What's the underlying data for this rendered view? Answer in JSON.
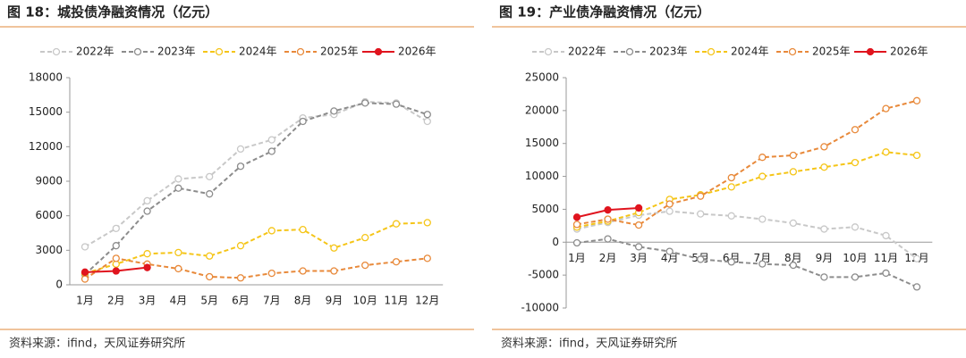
{
  "chart_data": [
    {
      "type": "line",
      "title": "图 18：城投债净融资情况（亿元）",
      "source": "资料来源：ifind，天风证券研究所",
      "categories": [
        "1月",
        "2月",
        "3月",
        "4月",
        "5月",
        "6月",
        "7月",
        "8月",
        "9月",
        "10月",
        "11月",
        "12月"
      ],
      "ylim": [
        0,
        18000
      ],
      "yticks": [
        0,
        3000,
        6000,
        9000,
        12000,
        15000,
        18000
      ],
      "series": [
        {
          "name": "2022年",
          "color": "#c8c8c8",
          "values": [
            3300,
            4900,
            7300,
            9200,
            9400,
            11800,
            12600,
            14500,
            14800,
            15900,
            15800,
            14200
          ]
        },
        {
          "name": "2023年",
          "color": "#8c8c8c",
          "values": [
            900,
            3400,
            6400,
            8400,
            7900,
            10300,
            11600,
            14200,
            15100,
            15800,
            15700,
            14800
          ]
        },
        {
          "name": "2024年",
          "color": "#f5c518",
          "values": [
            1000,
            1800,
            2700,
            2800,
            2500,
            3400,
            4700,
            4800,
            3200,
            4100,
            5300,
            5400
          ]
        },
        {
          "name": "2025年",
          "color": "#e8893a",
          "values": [
            500,
            2300,
            1800,
            1400,
            700,
            600,
            1000,
            1200,
            1200,
            1700,
            2000,
            2300
          ]
        },
        {
          "name": "2026年",
          "color": "#e0141e",
          "values": [
            1100,
            1200,
            1500,
            null,
            null,
            null,
            null,
            null,
            null,
            null,
            null,
            null
          ]
        }
      ]
    },
    {
      "type": "line",
      "title": "图 19：产业债净融资情况（亿元）",
      "source": "资料来源：ifind，天风证券研究所",
      "categories": [
        "1月",
        "2月",
        "3月",
        "4月",
        "5月",
        "6月",
        "7月",
        "8月",
        "9月",
        "10月",
        "11月",
        "12月"
      ],
      "ylim": [
        -10000,
        25000
      ],
      "yticks": [
        -10000,
        -5000,
        0,
        5000,
        10000,
        15000,
        20000,
        25000
      ],
      "series": [
        {
          "name": "2022年",
          "color": "#c8c8c8",
          "values": [
            2000,
            3000,
            4100,
            4700,
            4300,
            4000,
            3500,
            2900,
            2000,
            2300,
            1000,
            -2500
          ]
        },
        {
          "name": "2023年",
          "color": "#8c8c8c",
          "values": [
            -100,
            500,
            -700,
            -1400,
            -2600,
            -3000,
            -3300,
            -3500,
            -5300,
            -5300,
            -4700,
            -6800
          ]
        },
        {
          "name": "2024年",
          "color": "#f5c518",
          "values": [
            2300,
            3200,
            4500,
            6500,
            7200,
            8400,
            10000,
            10700,
            11400,
            12100,
            13700,
            13200
          ]
        },
        {
          "name": "2025年",
          "color": "#e8893a",
          "values": [
            2700,
            3500,
            2600,
            5800,
            7000,
            9800,
            12900,
            13200,
            14500,
            17100,
            20300,
            21500
          ]
        },
        {
          "name": "2026年",
          "color": "#e0141e",
          "values": [
            3800,
            4900,
            5200,
            null,
            null,
            null,
            null,
            null,
            null,
            null,
            null,
            null
          ]
        }
      ]
    }
  ]
}
